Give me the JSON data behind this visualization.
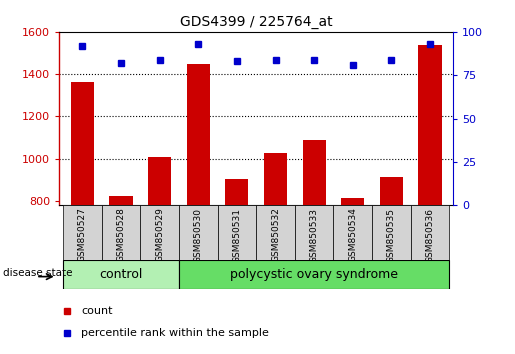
{
  "title": "GDS4399 / 225764_at",
  "samples": [
    "GSM850527",
    "GSM850528",
    "GSM850529",
    "GSM850530",
    "GSM850531",
    "GSM850532",
    "GSM850533",
    "GSM850534",
    "GSM850535",
    "GSM850536"
  ],
  "counts": [
    1365,
    825,
    1010,
    1450,
    905,
    1025,
    1090,
    815,
    915,
    1540
  ],
  "percentile_ranks": [
    92,
    82,
    84,
    93,
    83,
    84,
    84,
    81,
    84,
    93
  ],
  "ylim_left": [
    780,
    1600
  ],
  "ylim_right": [
    0,
    100
  ],
  "yticks_left": [
    800,
    1000,
    1200,
    1400,
    1600
  ],
  "yticks_right": [
    0,
    25,
    50,
    75,
    100
  ],
  "bar_color": "#cc0000",
  "dot_color": "#0000cc",
  "grid_color": "#000000",
  "n_control": 3,
  "n_pcos": 7,
  "control_label": "control",
  "pcos_label": "polycystic ovary syndrome",
  "disease_state_label": "disease state",
  "control_color": "#b3f0b3",
  "pcos_color": "#66dd66",
  "group_bar_color": "#d3d3d3",
  "legend_count_label": "count",
  "legend_percentile_label": "percentile rank within the sample"
}
